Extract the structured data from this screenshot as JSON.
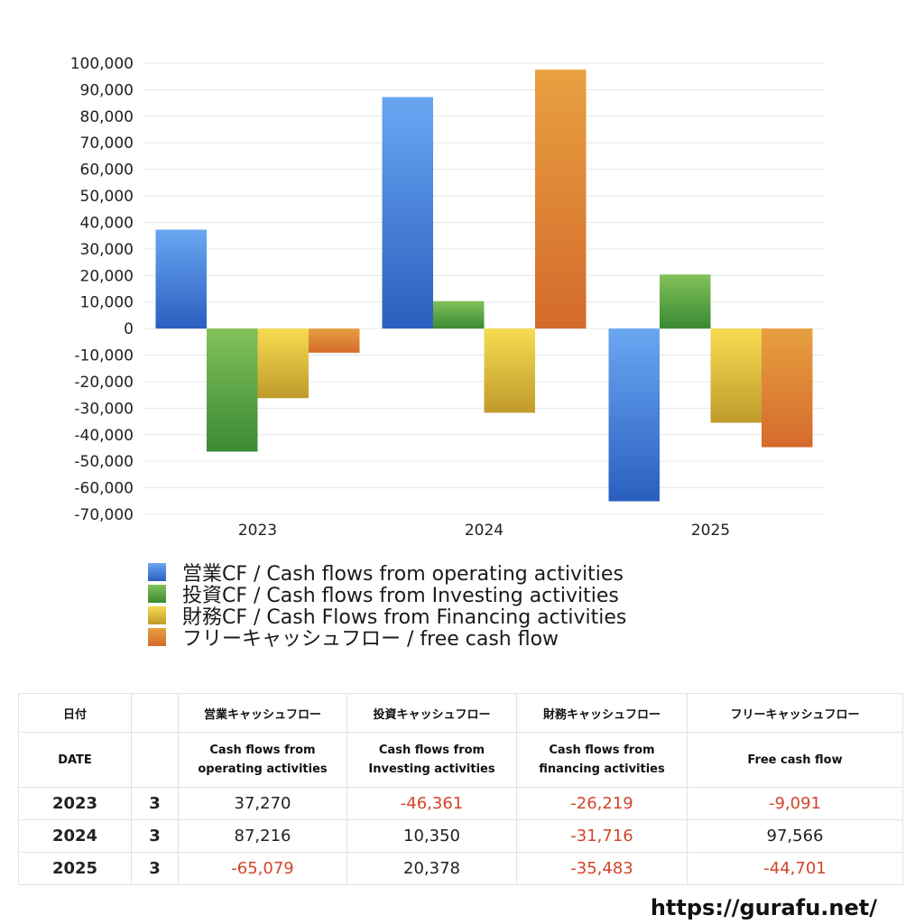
{
  "chart_data": {
    "type": "bar",
    "categories": [
      "2023",
      "2024",
      "2025"
    ],
    "ylim": [
      -70000,
      100000
    ],
    "ytick_step": 10000,
    "grid": true,
    "legend_position": "bottom",
    "series": [
      {
        "name": "営業CF / Cash flows from operating activities",
        "values": [
          37270,
          87216,
          -65079
        ],
        "color_top": "#6aa7f2",
        "color_bottom": "#2a5fbf"
      },
      {
        "name": "投資CF / Cash flows from Investing activities",
        "values": [
          -46361,
          10350,
          20378
        ],
        "color_top": "#82c15a",
        "color_bottom": "#3a8a34"
      },
      {
        "name": "財務CF / Cash Flows from Financing activities",
        "values": [
          -26219,
          -31716,
          -35483
        ],
        "color_top": "#f6dc50",
        "color_bottom": "#c09a2c"
      },
      {
        "name": "フリーキャッシュフロー / free cash flow",
        "values": [
          -9091,
          97566,
          -44701
        ],
        "color_top": "#e8a040",
        "color_bottom": "#d46a2c"
      }
    ]
  },
  "table": {
    "header1": [
      "日付",
      "",
      "営業キャッシュフロー",
      "投資キャッシュフロー",
      "財務キャッシュフロー",
      "フリーキャッシュフロー"
    ],
    "header2_date": "DATE",
    "header2": [
      [
        "Cash flows from",
        "operating activities"
      ],
      [
        "Cash flows from",
        "Investing activities"
      ],
      [
        "Cash flows from",
        "financing activities"
      ],
      [
        "Free cash flow",
        ""
      ]
    ],
    "rows": [
      {
        "year": "2023",
        "month": "3",
        "values": [
          "37,270",
          "-46,361",
          "-26,219",
          "-9,091"
        ]
      },
      {
        "year": "2024",
        "month": "3",
        "values": [
          "87,216",
          "10,350",
          "-31,716",
          "97,566"
        ]
      },
      {
        "year": "2025",
        "month": "3",
        "values": [
          "-65,079",
          "20,378",
          "-35,483",
          "-44,701"
        ]
      }
    ]
  },
  "footer": {
    "url": "https://gurafu.net/"
  }
}
